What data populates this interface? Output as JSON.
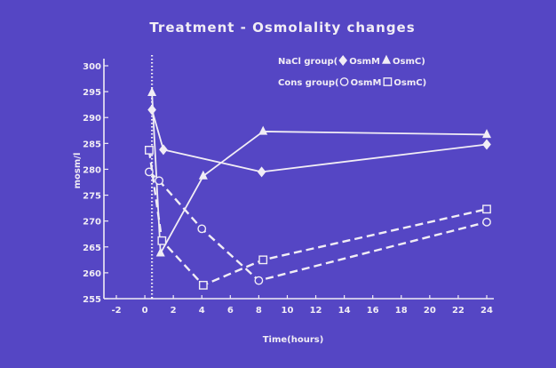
{
  "chart_data": {
    "type": "line",
    "title": "Treatment - Osmolality changes",
    "xlabel": "Time(hours)",
    "ylabel": "mosm/l",
    "xlim": [
      -2,
      25
    ],
    "ylim": [
      255,
      300
    ],
    "xticks": [
      "-2",
      "0",
      "2",
      "4",
      "6",
      "8",
      "10",
      "12",
      "14",
      "16",
      "18",
      "20",
      "22",
      "24"
    ],
    "yticks": [
      "255",
      "260",
      "265",
      "270",
      "275",
      "280",
      "285",
      "290",
      "295",
      "300"
    ],
    "grid": false,
    "legend_position": "top-right",
    "legend": [
      {
        "group": "NaCl group",
        "entries": [
          "OsmM",
          "OsmC"
        ]
      },
      {
        "group": "Cons group",
        "entries": [
          "OsmM",
          "OsmC"
        ]
      }
    ],
    "treatment_marker_x": 0.5,
    "series": [
      {
        "group": "NaCl group",
        "name": "OsmM",
        "marker": "diamond",
        "line": "solid",
        "x": [
          0.5,
          1.3,
          8.2,
          24
        ],
        "y": [
          291.5,
          283.8,
          279.5,
          284.8
        ]
      },
      {
        "group": "NaCl group",
        "name": "OsmC",
        "marker": "triangle",
        "line": "solid",
        "x": [
          0.5,
          1.1,
          4.1,
          8.3,
          24
        ],
        "y": [
          294.8,
          263.8,
          278.7,
          287.3,
          286.7
        ]
      },
      {
        "group": "Cons group",
        "name": "OsmM",
        "marker": "circle",
        "line": "dashed",
        "x": [
          0.3,
          1.0,
          4.0,
          8.0,
          24
        ],
        "y": [
          279.5,
          277.8,
          268.5,
          258.5,
          269.8
        ]
      },
      {
        "group": "Cons group",
        "name": "OsmC",
        "marker": "square",
        "line": "dashed",
        "x": [
          0.3,
          1.2,
          4.1,
          8.3,
          24
        ],
        "y": [
          283.7,
          266.2,
          257.6,
          262.5,
          272.3
        ]
      }
    ]
  },
  "colors": {
    "background": "#5546c4",
    "ink": "#f1edf5"
  }
}
